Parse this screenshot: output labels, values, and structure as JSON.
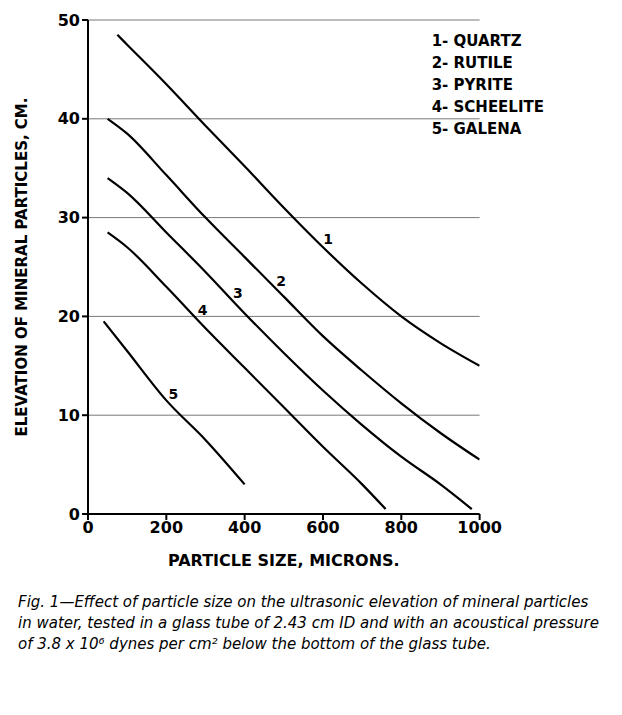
{
  "chart_data": {
    "type": "line",
    "caption": "Fig. 1—Effect of particle size on the ultrasonic elevation of mineral particles in water, tested in a glass tube of 2.43 cm ID and with an acoustical pressure of 3.8 x 10⁶ dynes per cm² below the bottom of the glass tube.",
    "x_label": "PARTICLE SIZE, MICRONS.",
    "y_label": "ELEVATION OF MINERAL PARTICLES, CM.",
    "xlim": [
      0,
      1000
    ],
    "xticks": [
      0,
      200,
      400,
      600,
      800,
      1000
    ],
    "ylim": [
      0,
      50
    ],
    "yticks": [
      0,
      10,
      20,
      30,
      40,
      50
    ],
    "grid": true,
    "legend": "upper right",
    "series": [
      {
        "name": "1- QUARTZ",
        "color": "#000000",
        "x": [
          75,
          100,
          200,
          300,
          400,
          500,
          600,
          700,
          800,
          900,
          1000
        ],
        "values": [
          48.5,
          47.5,
          43.5,
          39.3,
          35.2,
          31,
          27,
          23.3,
          20,
          17.3,
          15
        ]
      },
      {
        "name": "2- RUTILE",
        "color": "#000000",
        "x": [
          50,
          100,
          200,
          300,
          400,
          500,
          600,
          700,
          800,
          900,
          1000
        ],
        "values": [
          40,
          38.5,
          34.3,
          30,
          26,
          22,
          18,
          14.5,
          11.2,
          8.2,
          5.5
        ]
      },
      {
        "name": "3- PYRITE",
        "color": "#000000",
        "x": [
          50,
          100,
          200,
          300,
          400,
          500,
          600,
          700,
          800,
          900,
          980
        ],
        "values": [
          34,
          32.5,
          28.5,
          24.5,
          20.3,
          16.3,
          12.5,
          9,
          5.8,
          3,
          0.5
        ]
      },
      {
        "name": "4- SCHEELITE",
        "color": "#000000",
        "x": [
          50,
          100,
          200,
          300,
          400,
          500,
          600,
          700,
          760
        ],
        "values": [
          28.5,
          27,
          23,
          18.8,
          14.8,
          10.8,
          6.8,
          3,
          0.5
        ]
      },
      {
        "name": "5- GALENA",
        "color": "#000000",
        "x": [
          40,
          100,
          200,
          300,
          400
        ],
        "values": [
          19.5,
          16.5,
          11.5,
          7.5,
          3
        ]
      }
    ],
    "annotations": [
      {
        "text": "1",
        "x": 580,
        "y": 27.8
      },
      {
        "text": "2",
        "x": 460,
        "y": 23.6
      },
      {
        "text": "3",
        "x": 350,
        "y": 22.4
      },
      {
        "text": "4",
        "x": 260,
        "y": 20.6
      },
      {
        "text": "5",
        "x": 185,
        "y": 12.1
      }
    ]
  }
}
